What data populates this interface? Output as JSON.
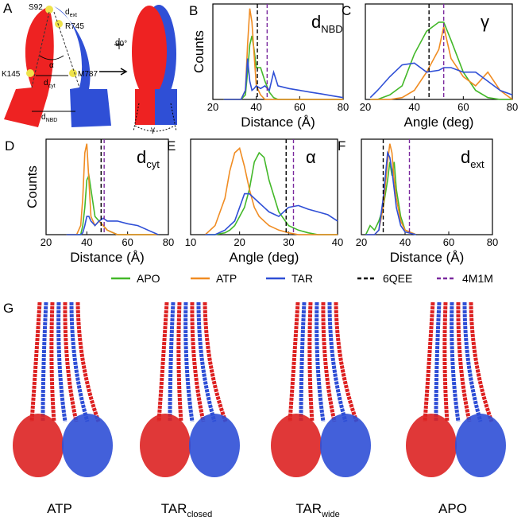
{
  "panel_a": {
    "letter": "A",
    "labels": [
      "S92",
      "d",
      "ext",
      "R745",
      "90°",
      "α",
      "K145",
      "M787",
      "d",
      "cyt",
      "d",
      "NBD",
      "γ"
    ]
  },
  "chart_data": [
    {
      "type": "line",
      "panel": "B",
      "title": "d",
      "title_subscript": "NBD",
      "xlabel": "Distance (Å)",
      "ylabel": "Counts",
      "xlim": [
        20,
        80
      ],
      "xticks": [
        20,
        40,
        60,
        80
      ],
      "ylim": [
        0,
        1.05
      ],
      "x": [
        25,
        30,
        33,
        35,
        36,
        37,
        38,
        39,
        40,
        42,
        44,
        46,
        48,
        50,
        55,
        60,
        65,
        70,
        75,
        80
      ],
      "series": [
        {
          "name": "APO",
          "color": "#43b829",
          "values": [
            0,
            0,
            0,
            0.05,
            0.3,
            0.6,
            0.7,
            0.55,
            0.35,
            0.35,
            0.2,
            0.08,
            0.02,
            0,
            0,
            0,
            0,
            0,
            0,
            0
          ]
        },
        {
          "name": "ATP",
          "color": "#f08c22",
          "values": [
            0,
            0,
            0,
            0.1,
            0.6,
            1.0,
            0.85,
            0.5,
            0.15,
            0.05,
            0,
            0,
            0,
            0,
            0,
            0,
            0,
            0,
            0,
            0
          ]
        },
        {
          "name": "TAR",
          "color": "#2f4fd6",
          "values": [
            0,
            0,
            0,
            0.1,
            0.45,
            0.2,
            0.1,
            0.12,
            0.15,
            0.12,
            0.15,
            0.1,
            0.3,
            0.15,
            0.12,
            0.1,
            0.08,
            0.06,
            0.04,
            0.02
          ]
        }
      ],
      "reference_lines": [
        {
          "name": "6QEE",
          "color": "#000000",
          "x": 40.5
        },
        {
          "name": "4M1M",
          "color": "#7b2a9e",
          "x": 45
        }
      ]
    },
    {
      "type": "line",
      "panel": "C",
      "title": "γ",
      "xlabel": "Angle (deg)",
      "xlim": [
        20,
        80
      ],
      "xticks": [
        20,
        40,
        60,
        80
      ],
      "ylim": [
        0,
        1.05
      ],
      "x": [
        22,
        25,
        30,
        35,
        40,
        45,
        50,
        52,
        55,
        60,
        65,
        70,
        75,
        80
      ],
      "series": [
        {
          "color": "#43b829",
          "values": [
            0,
            0,
            0.05,
            0.15,
            0.5,
            0.75,
            0.85,
            0.85,
            0.65,
            0.3,
            0.1,
            0.02,
            0,
            0
          ]
        },
        {
          "color": "#f08c22",
          "values": [
            0,
            0,
            0,
            0.02,
            0.1,
            0.3,
            0.55,
            0.8,
            0.45,
            0.25,
            0.15,
            0.3,
            0.1,
            0
          ]
        },
        {
          "color": "#2f4fd6",
          "values": [
            0.02,
            0.1,
            0.25,
            0.38,
            0.4,
            0.3,
            0.32,
            0.35,
            0.35,
            0.3,
            0.3,
            0.2,
            0.1,
            0.05
          ]
        }
      ],
      "reference_lines": [
        {
          "color": "#000000",
          "x": 46
        },
        {
          "color": "#7b2a9e",
          "x": 52
        }
      ]
    },
    {
      "type": "line",
      "panel": "D",
      "title": "d",
      "title_subscript": "cyt",
      "xlabel": "Distance (Å)",
      "ylabel": "Counts",
      "xlim": [
        20,
        80
      ],
      "xticks": [
        20,
        40,
        60,
        80
      ],
      "ylim": [
        0,
        1.05
      ],
      "x": [
        30,
        35,
        37,
        38,
        39,
        40,
        41,
        42,
        44,
        46,
        48,
        50,
        55,
        60,
        65,
        70,
        75
      ],
      "series": [
        {
          "color": "#43b829",
          "values": [
            0,
            0,
            0,
            0.1,
            0.3,
            0.6,
            0.65,
            0.5,
            0.2,
            0.15,
            0.1,
            0.05,
            0,
            0,
            0,
            0,
            0
          ]
        },
        {
          "color": "#f08c22",
          "values": [
            0,
            0,
            0.1,
            0.4,
            0.9,
            1.0,
            0.6,
            0.2,
            0.1,
            0.15,
            0.1,
            0.05,
            0,
            0,
            0,
            0,
            0
          ]
        },
        {
          "color": "#2f4fd6",
          "values": [
            0,
            0,
            0,
            0.02,
            0.1,
            0.2,
            0.2,
            0.15,
            0.1,
            0.15,
            0.18,
            0.15,
            0.15,
            0.12,
            0.1,
            0.05,
            0
          ]
        }
      ],
      "reference_lines": [
        {
          "color": "#000000",
          "x": 47
        },
        {
          "color": "#7b2a9e",
          "x": 48.5
        }
      ]
    },
    {
      "type": "line",
      "panel": "E",
      "title": "α",
      "xlabel": "Angle (deg)",
      "xlim": [
        10,
        40
      ],
      "xticks": [
        10,
        20,
        30,
        40
      ],
      "ylim": [
        0,
        1.05
      ],
      "x": [
        13,
        15,
        17,
        18,
        19,
        20,
        21,
        22,
        23,
        24,
        25,
        26,
        28,
        30,
        32,
        34,
        36,
        38,
        40
      ],
      "series": [
        {
          "color": "#43b829",
          "values": [
            0,
            0,
            0.02,
            0.05,
            0.1,
            0.2,
            0.3,
            0.5,
            0.8,
            0.9,
            0.85,
            0.6,
            0.25,
            0.1,
            0.05,
            0.02,
            0,
            0,
            0
          ]
        },
        {
          "color": "#f08c22",
          "values": [
            0,
            0.1,
            0.4,
            0.7,
            0.9,
            0.95,
            0.75,
            0.5,
            0.3,
            0.2,
            0.15,
            0.1,
            0.05,
            0.02,
            0,
            0,
            0,
            0,
            0
          ]
        },
        {
          "color": "#2f4fd6",
          "values": [
            0,
            0,
            0.05,
            0.1,
            0.15,
            0.3,
            0.45,
            0.45,
            0.4,
            0.35,
            0.3,
            0.25,
            0.2,
            0.3,
            0.32,
            0.28,
            0.25,
            0.22,
            0.15
          ]
        }
      ],
      "reference_lines": [
        {
          "color": "#000000",
          "x": 29.5
        },
        {
          "color": "#7b2a9e",
          "x": 31
        }
      ]
    },
    {
      "type": "line",
      "panel": "F",
      "title": "d",
      "title_subscript": "ext",
      "xlabel": "Distance (Å)",
      "xlim": [
        20,
        80
      ],
      "xticks": [
        20,
        40,
        60,
        80
      ],
      "ylim": [
        0,
        1.05
      ],
      "x": [
        22,
        24,
        26,
        28,
        30,
        32,
        33,
        34,
        35,
        36,
        38,
        40,
        45
      ],
      "series": [
        {
          "color": "#43b829",
          "values": [
            0,
            0.1,
            0.05,
            0.15,
            0.3,
            0.6,
            0.8,
            0.65,
            0.8,
            0.5,
            0.2,
            0.05,
            0
          ]
        },
        {
          "color": "#f08c22",
          "values": [
            0,
            0,
            0,
            0.05,
            0.3,
            0.8,
            1.0,
            0.9,
            0.6,
            0.4,
            0.15,
            0.05,
            0
          ]
        },
        {
          "color": "#2f4fd6",
          "values": [
            0,
            0,
            0,
            0.05,
            0.4,
            0.9,
            0.85,
            0.7,
            0.5,
            0.3,
            0.1,
            0.03,
            0
          ]
        }
      ],
      "reference_lines": [
        {
          "color": "#000000",
          "x": 30
        },
        {
          "color": "#7b2a9e",
          "x": 42
        }
      ]
    }
  ],
  "panel_g": {
    "letter": "G",
    "structures": [
      {
        "label": "ATP"
      },
      {
        "label": "TAR",
        "subscript": "closed"
      },
      {
        "label": "TAR",
        "subscript": "wide"
      },
      {
        "label": "APO"
      }
    ]
  }
}
